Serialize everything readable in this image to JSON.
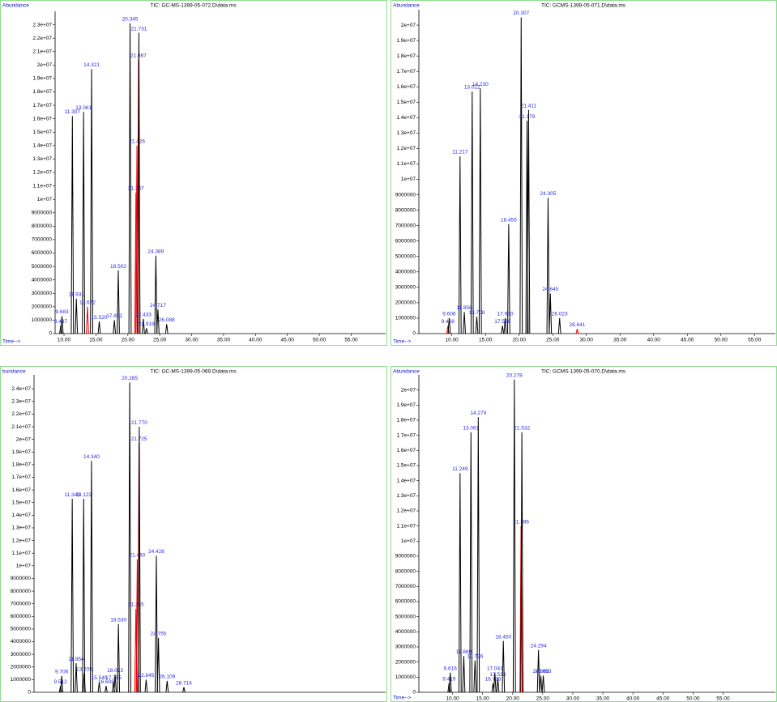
{
  "chart_data": [
    {
      "type": "line",
      "title": "TIC: GC-MS-1399-05-072.D\\data.ms",
      "ylabel": "Abundance",
      "xlabel": "Time-->",
      "x": [
        9.487,
        9.683,
        11.307,
        11.931,
        13.061,
        13.672,
        14.321,
        15.52,
        17.891,
        18.502,
        20.345,
        21.267,
        21.426,
        21.667,
        21.731,
        22.433,
        22.919,
        24.389,
        24.717,
        26.088
      ],
      "values": [
        600000,
        1300000,
        16200000,
        2600000,
        16500000,
        2000000,
        19700000,
        900000,
        1000000,
        4700000,
        23100000,
        10500000,
        14000000,
        20400000,
        22400000,
        1100000,
        400000,
        5800000,
        1800000,
        700000
      ],
      "value_labels": [
        "9.487",
        "9.683",
        "11.307",
        "11.931",
        "13.061",
        "13.672",
        "14.321",
        "15.520",
        "17.891",
        "18.502",
        "20.345",
        "21.267",
        "21.426",
        "21.667",
        "21.731",
        "22.433",
        "22.919",
        "24.389",
        "24.717",
        "26.088"
      ],
      "colors": [
        "#000",
        "#000",
        "#000",
        "#000",
        "#000",
        "#e00",
        "#000",
        "#000",
        "#000",
        "#000",
        "#000",
        "#e00",
        "#e00",
        "#e00",
        "#000",
        "#000",
        "#000",
        "#000",
        "#000",
        "#000"
      ],
      "xlim": [
        8.6,
        60.4
      ],
      "ylim": [
        0,
        24000000
      ],
      "xticks": [
        {
          "value": 10,
          "label": "10.00"
        },
        {
          "value": 15,
          "label": "15.00"
        },
        {
          "value": 20,
          "label": "20.00"
        },
        {
          "value": 25,
          "label": "25.00"
        },
        {
          "value": 30,
          "label": "30.00"
        },
        {
          "value": 35,
          "label": "35.00"
        },
        {
          "value": 40,
          "label": "40.00"
        },
        {
          "value": 45,
          "label": "45.00"
        },
        {
          "value": 50,
          "label": "50.00"
        },
        {
          "value": 55,
          "label": "55.00"
        }
      ],
      "yticks": [
        0,
        1000000,
        2000000,
        3000000,
        4000000,
        5000000,
        6000000,
        7000000,
        8000000,
        9000000,
        {
          "value": 10000000,
          "label": "1e+07"
        },
        {
          "value": 11000000,
          "label": "1.1e+07"
        },
        {
          "value": 12000000,
          "label": "1.2e+07"
        },
        {
          "value": 13000000,
          "label": "1.3e+07"
        },
        {
          "value": 14000000,
          "label": "1.4e+07"
        },
        {
          "value": 15000000,
          "label": "1.5e+07"
        },
        {
          "value": 16000000,
          "label": "1.6e+07"
        },
        {
          "value": 17000000,
          "label": "1.7e+07"
        },
        {
          "value": 18000000,
          "label": "1.8e+07"
        },
        {
          "value": 19000000,
          "label": "1.9e+07"
        },
        {
          "value": 20000000,
          "label": "2e+07"
        },
        {
          "value": 21000000,
          "label": "2.1e+07"
        },
        {
          "value": 22000000,
          "label": "2.2e+07"
        },
        {
          "value": 23000000,
          "label": "2.3e+07"
        }
      ]
    },
    {
      "type": "line",
      "title": "TIC: GCMS-1399-05-071.D\\data.ms",
      "ylabel": "Abundance",
      "xlabel": "Time-->",
      "x": [
        9.408,
        9.606,
        11.217,
        11.856,
        13.022,
        13.708,
        14.23,
        17.528,
        17.93,
        18.455,
        20.307,
        21.179,
        21.411,
        24.305,
        24.645,
        26.023,
        28.641
      ],
      "values": [
        500000,
        1000000,
        11500000,
        1400000,
        15700000,
        1100000,
        15900000,
        500000,
        1000000,
        7100000,
        20500000,
        13800000,
        14500000,
        8800000,
        2600000,
        1000000,
        300000
      ],
      "value_labels": [
        "9.408",
        "9.606",
        "11.217",
        "11.856",
        "13.022",
        "13.708",
        "14.230",
        "17.528",
        "17.930",
        "18.455",
        "20.307",
        "21.179",
        "21.411",
        "24.305",
        "24.645",
        "26.023",
        "28.641"
      ],
      "colors": [
        "#e00",
        "#000",
        "#000",
        "#000",
        "#000",
        "#000",
        "#000",
        "#000",
        "#000",
        "#000",
        "#000",
        "#000",
        "#000",
        "#000",
        "#000",
        "#000",
        "#e00"
      ],
      "xlim": [
        5.1,
        58.1
      ],
      "ylim": [
        0,
        21000000
      ],
      "xticks": [
        {
          "value": 10,
          "label": "10.00"
        },
        {
          "value": 15,
          "label": "15.00"
        },
        {
          "value": 20,
          "label": "20.00"
        },
        {
          "value": 25,
          "label": "25.00"
        },
        {
          "value": 30,
          "label": "30.00"
        },
        {
          "value": 35,
          "label": "35.00"
        },
        {
          "value": 40,
          "label": "40.00"
        },
        {
          "value": 45,
          "label": "45.00"
        },
        {
          "value": 50,
          "label": "50.00"
        },
        {
          "value": 55,
          "label": "55.00"
        }
      ],
      "yticks": [
        0,
        1000000,
        2000000,
        3000000,
        4000000,
        5000000,
        6000000,
        7000000,
        8000000,
        9000000,
        {
          "value": 10000000,
          "label": "1e+07"
        },
        {
          "value": 11000000,
          "label": "1.1e+07"
        },
        {
          "value": 12000000,
          "label": "1.2e+07"
        },
        {
          "value": 13000000,
          "label": "1.3e+07"
        },
        {
          "value": 14000000,
          "label": "1.4e+07"
        },
        {
          "value": 15000000,
          "label": "1.5e+07"
        },
        {
          "value": 16000000,
          "label": "1.6e+07"
        },
        {
          "value": 17000000,
          "label": "1.7e+07"
        },
        {
          "value": 18000000,
          "label": "1.8e+07"
        },
        {
          "value": 19000000,
          "label": "1.9e+07"
        },
        {
          "value": 20000000,
          "label": "2e+07"
        }
      ]
    },
    {
      "type": "line",
      "title": "TIC: GC-MS-1399-05-069.D\\data.ms",
      "ylabel": "bundance",
      "x": [
        9.512,
        9.706,
        11.343,
        11.954,
        13.122,
        13.205,
        14.34,
        15.545,
        16.608,
        17.755,
        18.013,
        18.53,
        20.285,
        21.245,
        21.46,
        21.725,
        21.77,
        22.845,
        24.426,
        24.755,
        26.109,
        28.714
      ],
      "values": [
        500000,
        1300000,
        15300000,
        2300000,
        15300000,
        1500000,
        18300000,
        800000,
        500000,
        800000,
        1400000,
        5400000,
        24500000,
        6600000,
        10500000,
        19700000,
        21000000,
        1000000,
        10800000,
        4300000,
        900000,
        400000
      ],
      "value_labels": [
        "9.512",
        "9.706",
        "11.343",
        "11.954",
        "13.122",
        "13.205",
        "14.340",
        "15.545",
        "16.608",
        "17.755",
        "18.013",
        "18.530",
        "20.285",
        "21.245",
        "21.460",
        "21.725",
        "21.770",
        "22.845",
        "24.426",
        "24.755",
        "26.109",
        "28.714"
      ],
      "colors": [
        "#000",
        "#000",
        "#000",
        "#000",
        "#000",
        "#000",
        "#000",
        "#000",
        "#000",
        "#000",
        "#000",
        "#000",
        "#000",
        "#e00",
        "#e00",
        "#e00",
        "#000",
        "#000",
        "#000",
        "#000",
        "#000",
        "#000"
      ],
      "xlim": [
        5.4,
        60.1
      ],
      "ylim": [
        0,
        25100000
      ],
      "yticks": [
        0,
        1000000,
        2000000,
        3000000,
        4000000,
        5000000,
        6000000,
        7000000,
        8000000,
        9000000,
        {
          "value": 10000000,
          "label": "1e+07"
        },
        {
          "value": 11000000,
          "label": "1.1e+07"
        },
        {
          "value": 12000000,
          "label": "1.2e+07"
        },
        {
          "value": 13000000,
          "label": "1.3e+07"
        },
        {
          "value": 14000000,
          "label": "1.4e+07"
        },
        {
          "value": 15000000,
          "label": "1.5e+07"
        },
        {
          "value": 16000000,
          "label": "1.6e+07"
        },
        {
          "value": 17000000,
          "label": "1.7e+07"
        },
        {
          "value": 18000000,
          "label": "1.8e+07"
        },
        {
          "value": 19000000,
          "label": "1.9e+07"
        },
        {
          "value": 20000000,
          "label": "2e+07"
        },
        {
          "value": 21000000,
          "label": "2.1e+07"
        },
        {
          "value": 22000000,
          "label": "2.2e+07"
        },
        {
          "value": 23000000,
          "label": "2.3e+07"
        },
        {
          "value": 24000000,
          "label": "2.4e+07"
        }
      ]
    },
    {
      "type": "line",
      "title": "TIC: GCMS-1399-05-070.D\\data.ms",
      "ylabel": "Abundance",
      "xlabel": "Time-->",
      "x": [
        9.419,
        9.616,
        11.249,
        11.869,
        13.061,
        13.736,
        14.279,
        16.735,
        17.041,
        17.533,
        18.45,
        20.278,
        21.396,
        21.532,
        24.294,
        24.683,
        25.093
      ],
      "values": [
        600000,
        1300000,
        14500000,
        2400000,
        17200000,
        2100000,
        18200000,
        600000,
        1300000,
        900000,
        3400000,
        20700000,
        11000000,
        17200000,
        2800000,
        1100000,
        1100000
      ],
      "value_labels": [
        "9.419",
        "9.616",
        "11.249",
        "11.869",
        "13.061",
        "13.736",
        "14.279",
        "16.735",
        "17.041",
        "17.533",
        "18.450",
        "20.278",
        "21.396",
        "21.532",
        "24.294",
        "24.683",
        "25.093"
      ],
      "colors": [
        "#000",
        "#000",
        "#000",
        "#000",
        "#000",
        "#000",
        "#000",
        "#000",
        "#000",
        "#000",
        "#000",
        "#000",
        "#e00",
        "#000",
        "#000",
        "#000",
        "#000"
      ],
      "xlim": [
        4.4,
        63.7
      ],
      "ylim": [
        0,
        21000000
      ],
      "xticks": [
        {
          "value": 10,
          "label": "10.00"
        },
        {
          "value": 15,
          "label": "15.00"
        },
        {
          "value": 20,
          "label": "20.00"
        },
        {
          "value": 25,
          "label": "25.00"
        },
        {
          "value": 30,
          "label": "30.00"
        },
        {
          "value": 35,
          "label": "35.00"
        },
        {
          "value": 40,
          "label": "40.00"
        },
        {
          "value": 45,
          "label": "45.00"
        },
        {
          "value": 50,
          "label": "50.00"
        },
        {
          "value": 55,
          "label": "55.00"
        }
      ],
      "yticks": [
        0,
        1000000,
        2000000,
        3000000,
        4000000,
        5000000,
        6000000,
        7000000,
        8000000,
        9000000,
        {
          "value": 10000000,
          "label": "1e+07"
        },
        {
          "value": 11000000,
          "label": "1.1e+07"
        },
        {
          "value": 12000000,
          "label": "1.2e+07"
        },
        {
          "value": 13000000,
          "label": "1.3e+07"
        },
        {
          "value": 14000000,
          "label": "1.4e+07"
        },
        {
          "value": 15000000,
          "label": "1.5e+07"
        },
        {
          "value": 16000000,
          "label": "1.6e+07"
        },
        {
          "value": 17000000,
          "label": "1.7e+07"
        },
        {
          "value": 18000000,
          "label": "1.8e+07"
        },
        {
          "value": 19000000,
          "label": "1.9e+07"
        },
        {
          "value": 20000000,
          "label": "2e+07"
        }
      ]
    }
  ]
}
